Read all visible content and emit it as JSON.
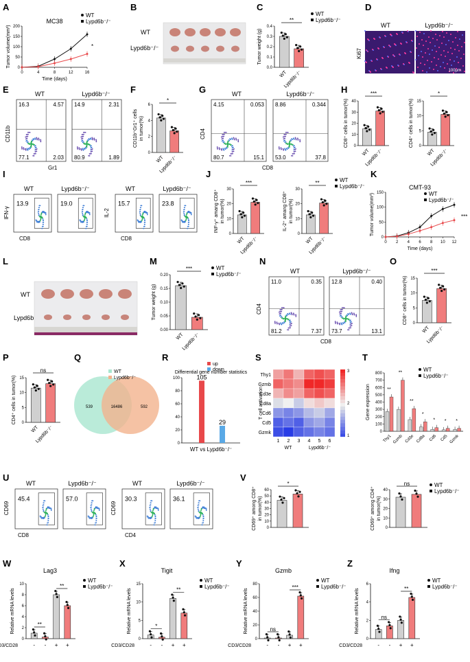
{
  "figure": {
    "panel_letters": [
      "A",
      "B",
      "C",
      "D",
      "E",
      "F",
      "G",
      "H",
      "I",
      "J",
      "K",
      "L",
      "M",
      "N",
      "O",
      "P",
      "Q",
      "R",
      "S",
      "T",
      "U",
      "V",
      "W",
      "X",
      "Y",
      "Z"
    ],
    "legend": {
      "wt": "WT",
      "ko": "Lypd6b⁻/⁻"
    },
    "sig": {
      "one": "*",
      "two": "**",
      "three": "***",
      "ns": "ns"
    },
    "panelA": {
      "title": "MC38",
      "ylabel": "Tumor volume(mm³)",
      "xlabel": "Time (days)",
      "xticks": [
        "0",
        "4",
        "8",
        "12",
        "16"
      ],
      "yticks": [
        "0",
        "50",
        "100",
        "150",
        "200"
      ]
    },
    "panelB": {
      "row1": "WT",
      "row2": "Lypd6b⁻/⁻"
    },
    "panelC": {
      "ylabel": "Tumor weight (g)",
      "yticks": [
        "0.0",
        "0.1",
        "0.2",
        "0.3",
        "0.4"
      ]
    },
    "panelD": {
      "marker": "Ki67",
      "scalebar": "100μm"
    },
    "panelE": {
      "xlabel": "Gr1",
      "ylabel": "CD11b",
      "wt_q": [
        "16.3",
        "4.57",
        "77.1",
        "2.03"
      ],
      "ko_q": [
        "14.9",
        "2.31",
        "80.9",
        "1.89"
      ]
    },
    "panelF": {
      "ylabel": "CD11b⁺Gr1⁺ cells in tumor(%)",
      "yticks": [
        "0",
        "2",
        "4",
        "6"
      ]
    },
    "panelG": {
      "xlabel": "CD8",
      "ylabel": "CD4",
      "wt_q": [
        "4.15",
        "0.053",
        "80.7",
        "15.1"
      ],
      "ko_q": [
        "8.86",
        "0.344",
        "53.0",
        "37.8"
      ]
    },
    "panelH": {
      "ylabel1": "CD8⁺ cells in tumor(%)",
      "ylabel2": "CD4⁺ cells in tumor(%)",
      "yticks1": [
        "0",
        "10",
        "20",
        "30",
        "40"
      ],
      "yticks2": [
        "0",
        "5",
        "10",
        "15"
      ]
    },
    "panelI": {
      "ylabel1": "IFN-γ",
      "ylabel2": "IL-2",
      "xlabel": "CD8",
      "vals": [
        "13.9",
        "19.0",
        "15.7",
        "23.8"
      ]
    },
    "panelJ": {
      "ylabel1": "INF-γ⁺ amang CD8⁺ in tumor(%)",
      "ylabel2": "IL-2⁺ amang CD8⁺ in tumor(%)",
      "yticks1": [
        "0",
        "10",
        "20",
        "30"
      ],
      "yticks2": [
        "0",
        "10",
        "20",
        "30"
      ]
    },
    "panelK": {
      "title": "CMT-93",
      "ylabel": "Tumor volume(mm³)",
      "xlabel": "Time (days)",
      "xticks": [
        "0",
        "2",
        "4",
        "6",
        "8",
        "10",
        "12"
      ],
      "yticks": [
        "0",
        "50",
        "100",
        "150"
      ]
    },
    "panelM": {
      "ylabel": "Tumor weight (g)",
      "yticks": [
        "0.00",
        "0.05",
        "0.10",
        "0.15",
        "0.20"
      ]
    },
    "panelN": {
      "xlabel": "CD8",
      "ylabel": "CD4",
      "wt_q": [
        "11.0",
        "0.35",
        "81.2",
        "7.37"
      ],
      "ko_q": [
        "12.8",
        "0.40",
        "73.7",
        "13.1"
      ]
    },
    "panelO": {
      "ylabel": "CD8⁺ cells in tumor(%)",
      "yticks": [
        "0",
        "5",
        "10",
        "15"
      ]
    },
    "panelP": {
      "ylabel": "CD4⁺ cells in tumor(%)",
      "yticks": [
        "0",
        "5",
        "10",
        "15"
      ]
    },
    "panelQ": {
      "left": "539",
      "center": "16486",
      "right": "592"
    },
    "panelR": {
      "title": "Differential gene number statistics",
      "up": "up",
      "down": "down",
      "up_val": "105",
      "down_val": "29",
      "xlabel": "WT vs Lypd6b⁻/⁻",
      "yticks": [
        "0",
        "20",
        "40",
        "60",
        "80",
        "100"
      ]
    },
    "panelS": {
      "ylabel": "T cell activation",
      "genes": [
        "Thy1",
        "Gzmb",
        "Cd3e",
        "Cd8a",
        "Cd6",
        "Cd5",
        "Gzmk"
      ],
      "cols": [
        "1",
        "2",
        "3",
        "4",
        "5",
        "6"
      ],
      "scale": [
        "3",
        "2",
        "1"
      ]
    },
    "panelT": {
      "ylabel": "Gene expression",
      "genes": [
        "Thy1",
        "Gzmb",
        "Cd3e",
        "Cd8a",
        "Cd6",
        "Cd5",
        "Gzmk"
      ],
      "yticks": [
        "0",
        "100",
        "200",
        "300",
        "400",
        "500",
        "600",
        "700",
        "800"
      ]
    },
    "panelU": {
      "vals": [
        "45.4",
        "57.0",
        "30.3",
        "36.1"
      ],
      "ylabel": "CD69",
      "xlabel1": "CD8",
      "xlabel2": "CD4"
    },
    "panelV": {
      "ylabel1": "CD69⁺ among CD8⁺ in tumor(%)",
      "ylabel2": "CD69⁺ among CD4⁺ in tumor(%)",
      "yticks": [
        "0",
        "10",
        "20",
        "30",
        "40",
        "50",
        "60"
      ]
    },
    "bottom": {
      "genes": [
        "Lag3",
        "Tigit",
        "Gzmb",
        "Ifng"
      ],
      "ylabel": "Relative mRNA levels",
      "stim": "CD3/CD28",
      "stim_signs": [
        "-",
        "-",
        "+",
        "+"
      ],
      "yticksW": [
        "0",
        "2",
        "4",
        "6",
        "8",
        "10"
      ],
      "yticksX": [
        "0",
        "5",
        "10",
        "15"
      ],
      "yticksY": [
        "0",
        "20",
        "40",
        "60",
        "80"
      ],
      "yticksZ": [
        "0",
        "2",
        "4",
        "6"
      ]
    },
    "chart_data": [
      {
        "type": "line",
        "panel": "A",
        "title": "MC38",
        "x": [
          0,
          4,
          8,
          12,
          16
        ],
        "series": [
          {
            "name": "WT",
            "values": [
              0,
              5,
              40,
              90,
              160
            ]
          },
          {
            "name": "Lypd6b-/-",
            "values": [
              0,
              3,
              20,
              40,
              65
            ]
          }
        ],
        "ylim": [
          0,
          200
        ]
      },
      {
        "type": "bar",
        "panel": "C",
        "categories": [
          "WT",
          "Lypd6b-/-"
        ],
        "values": [
          0.3,
          0.18
        ],
        "ylim": [
          0,
          0.4
        ]
      },
      {
        "type": "bar",
        "panel": "F",
        "categories": [
          "WT",
          "Lypd6b-/-"
        ],
        "values": [
          4.3,
          2.7
        ],
        "ylim": [
          0,
          6
        ]
      },
      {
        "type": "bar",
        "panel": "H1",
        "categories": [
          "WT",
          "Lypd6b-/-"
        ],
        "values": [
          15,
          31
        ],
        "ylim": [
          0,
          40
        ]
      },
      {
        "type": "bar",
        "panel": "H2",
        "categories": [
          "WT",
          "Lypd6b-/-"
        ],
        "values": [
          4.5,
          10.5
        ],
        "ylim": [
          0,
          15
        ]
      },
      {
        "type": "bar",
        "panel": "J1",
        "categories": [
          "WT",
          "Lypd6b-/-"
        ],
        "values": [
          12.5,
          21
        ],
        "ylim": [
          0,
          30
        ]
      },
      {
        "type": "bar",
        "panel": "J2",
        "categories": [
          "WT",
          "Lypd6b-/-"
        ],
        "values": [
          12.5,
          20.5
        ],
        "ylim": [
          0,
          30
        ]
      },
      {
        "type": "line",
        "panel": "K",
        "title": "CMT-93",
        "x": [
          0,
          2,
          4,
          6,
          8,
          10,
          12
        ],
        "series": [
          {
            "name": "WT",
            "values": [
              0,
              3,
              15,
              35,
              75,
              100,
              115
            ]
          },
          {
            "name": "Lypd6b-/-",
            "values": [
              0,
              2,
              10,
              22,
              35,
              50,
              60
            ]
          }
        ],
        "ylim": [
          0,
          160
        ]
      },
      {
        "type": "bar",
        "panel": "M",
        "categories": [
          "WT",
          "Lypd6b-/-"
        ],
        "values": [
          0.16,
          0.045
        ],
        "ylim": [
          0,
          0.2
        ]
      },
      {
        "type": "bar",
        "panel": "O",
        "categories": [
          "WT",
          "Lypd6b-/-"
        ],
        "values": [
          7.5,
          11.5
        ],
        "ylim": [
          0,
          15
        ]
      },
      {
        "type": "bar",
        "panel": "P",
        "categories": [
          "WT",
          "Lypd6b-/-"
        ],
        "values": [
          11.5,
          13
        ],
        "ylim": [
          0,
          15
        ]
      },
      {
        "type": "bar",
        "panel": "R",
        "categories": [
          "up",
          "down"
        ],
        "values": [
          105,
          29
        ],
        "ylim": [
          0,
          110
        ]
      },
      {
        "type": "heatmap",
        "panel": "S",
        "rows": [
          "Thy1",
          "Gzmb",
          "Cd3e",
          "Cd8a",
          "Cd6",
          "Cd5",
          "Gzmk"
        ],
        "cols": [
          "1",
          "2",
          "3",
          "4",
          "5",
          "6"
        ],
        "values": [
          [
            2.4,
            2.6,
            2.3,
            2.7,
            2.8,
            2.7
          ],
          [
            2.7,
            2.6,
            2.5,
            3.0,
            3.0,
            2.9
          ],
          [
            2.3,
            2.5,
            2.4,
            2.7,
            2.8,
            2.7
          ],
          [
            1.9,
            2.0,
            1.8,
            2.1,
            2.2,
            2.1
          ],
          [
            1.5,
            1.4,
            1.5,
            1.7,
            1.8,
            1.6
          ],
          [
            1.2,
            1.3,
            1.2,
            1.5,
            1.6,
            1.4
          ],
          [
            1.1,
            1.0,
            1.2,
            1.3,
            1.4,
            1.3
          ]
        ]
      },
      {
        "type": "bar",
        "panel": "T",
        "categories": [
          "Thy1",
          "Gzmb",
          "Cd3e",
          "Cd8a",
          "Cd6",
          "Cd5",
          "Gzmk"
        ],
        "series": [
          {
            "name": "WT",
            "values": [
              270,
              300,
              160,
              60,
              25,
              20,
              25
            ]
          },
          {
            "name": "Lypd6b-/-",
            "values": [
              470,
              700,
              310,
              130,
              50,
              40,
              40
            ]
          }
        ],
        "ylim": [
          0,
          800
        ]
      },
      {
        "type": "bar",
        "panel": "V1",
        "categories": [
          "WT",
          "Lypd6b-/-"
        ],
        "values": [
          43,
          53
        ],
        "ylim": [
          0,
          60
        ]
      },
      {
        "type": "bar",
        "panel": "V2",
        "categories": [
          "WT",
          "Lypd6b-/-"
        ],
        "values": [
          32,
          35
        ],
        "ylim": [
          0,
          40
        ]
      },
      {
        "type": "bar",
        "panel": "W",
        "categories": [
          "WT -",
          "KO -",
          "WT +",
          "KO +"
        ],
        "values": [
          1,
          0.3,
          8,
          6
        ],
        "ylim": [
          0,
          10
        ]
      },
      {
        "type": "bar",
        "panel": "X",
        "categories": [
          "WT -",
          "KO -",
          "WT +",
          "KO +"
        ],
        "values": [
          1,
          0.4,
          11,
          7
        ],
        "ylim": [
          0,
          15
        ]
      },
      {
        "type": "bar",
        "panel": "Y",
        "categories": [
          "WT -",
          "KO -",
          "WT +",
          "KO +"
        ],
        "values": [
          1,
          1,
          5,
          62
        ],
        "ylim": [
          0,
          80
        ]
      },
      {
        "type": "bar",
        "panel": "Z",
        "categories": [
          "WT -",
          "KO -",
          "WT +",
          "KO +"
        ],
        "values": [
          1,
          1.4,
          2,
          4.5
        ],
        "ylim": [
          0,
          6
        ]
      }
    ],
    "colors": {
      "wt_bar": "#d0d0d0",
      "ko_bar": "#f07c7c",
      "ko_line": "#e8484a",
      "wt_line": "#111111"
    }
  }
}
